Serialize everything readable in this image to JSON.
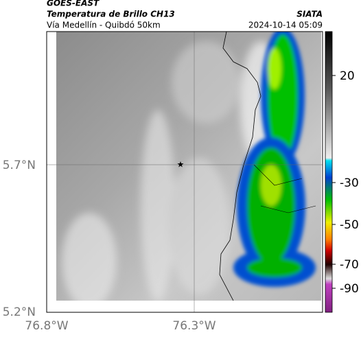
{
  "header": {
    "title": "GOES-EAST",
    "subtitle": "Temperatura de Brillo CH13",
    "route": "Vía Medellín - Quibdó 50km",
    "source": "SIATA",
    "timestamp": "2024-10-14 05:09"
  },
  "map": {
    "lat_labels": [
      "5.7°N",
      "5.2°N"
    ],
    "lon_labels": [
      "76.8°W",
      "76.3°W"
    ]
  },
  "colorbar": {
    "ticks": [
      20,
      -30,
      -50,
      -70,
      -90
    ]
  }
}
